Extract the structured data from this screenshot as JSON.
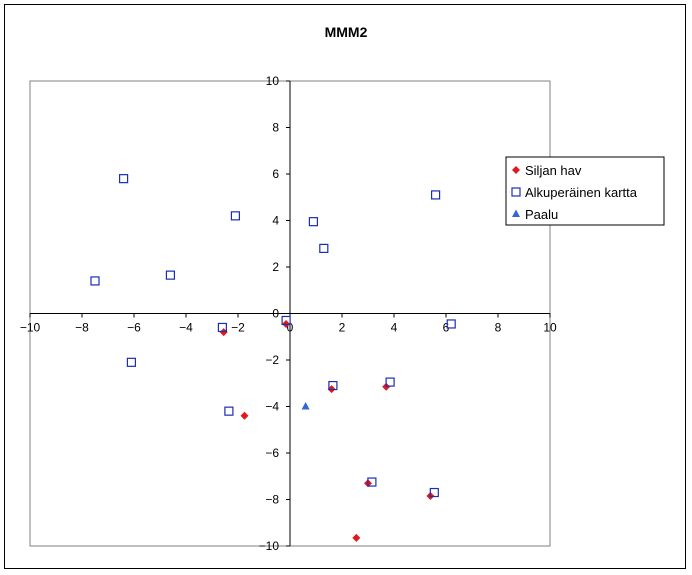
{
  "chart_data": {
    "type": "scatter",
    "title": "MMM2",
    "xlabel": "",
    "ylabel": "",
    "xlim": [
      -10,
      10
    ],
    "ylim": [
      -10,
      10
    ],
    "xticks": [
      -10,
      -8,
      -6,
      -4,
      -2,
      0,
      2,
      4,
      6,
      8,
      10
    ],
    "yticks": [
      -10,
      -8,
      -6,
      -4,
      -2,
      0,
      2,
      4,
      6,
      8,
      10
    ],
    "grid": false,
    "legend_position": "right",
    "series": [
      {
        "name": "Siljan hav",
        "marker": "diamond",
        "color": "#e0191f",
        "points": [
          [
            -2.55,
            -0.8
          ],
          [
            -1.75,
            -4.4
          ],
          [
            -0.15,
            -0.45
          ],
          [
            1.6,
            -3.25
          ],
          [
            3.0,
            -7.3
          ],
          [
            3.7,
            -3.15
          ],
          [
            5.4,
            -7.85
          ],
          [
            2.55,
            -9.65
          ]
        ]
      },
      {
        "name": "Alkuperäinen kartta",
        "marker": "square-open",
        "color": "#1a2fb5",
        "points": [
          [
            -6.4,
            5.8
          ],
          [
            -7.5,
            1.4
          ],
          [
            -4.6,
            1.65
          ],
          [
            -2.1,
            4.2
          ],
          [
            -2.6,
            -0.6
          ],
          [
            -6.1,
            -2.1
          ],
          [
            -2.35,
            -4.2
          ],
          [
            -0.15,
            -0.3
          ],
          [
            0.9,
            3.95
          ],
          [
            1.3,
            2.8
          ],
          [
            1.65,
            -3.1
          ],
          [
            3.85,
            -2.95
          ],
          [
            3.15,
            -7.25
          ],
          [
            5.6,
            5.1
          ],
          [
            6.2,
            -0.45
          ],
          [
            5.55,
            -7.7
          ]
        ]
      },
      {
        "name": "Paalu",
        "marker": "triangle",
        "color": "#3366d6",
        "points": [
          [
            0.6,
            -4.0
          ]
        ]
      }
    ]
  }
}
